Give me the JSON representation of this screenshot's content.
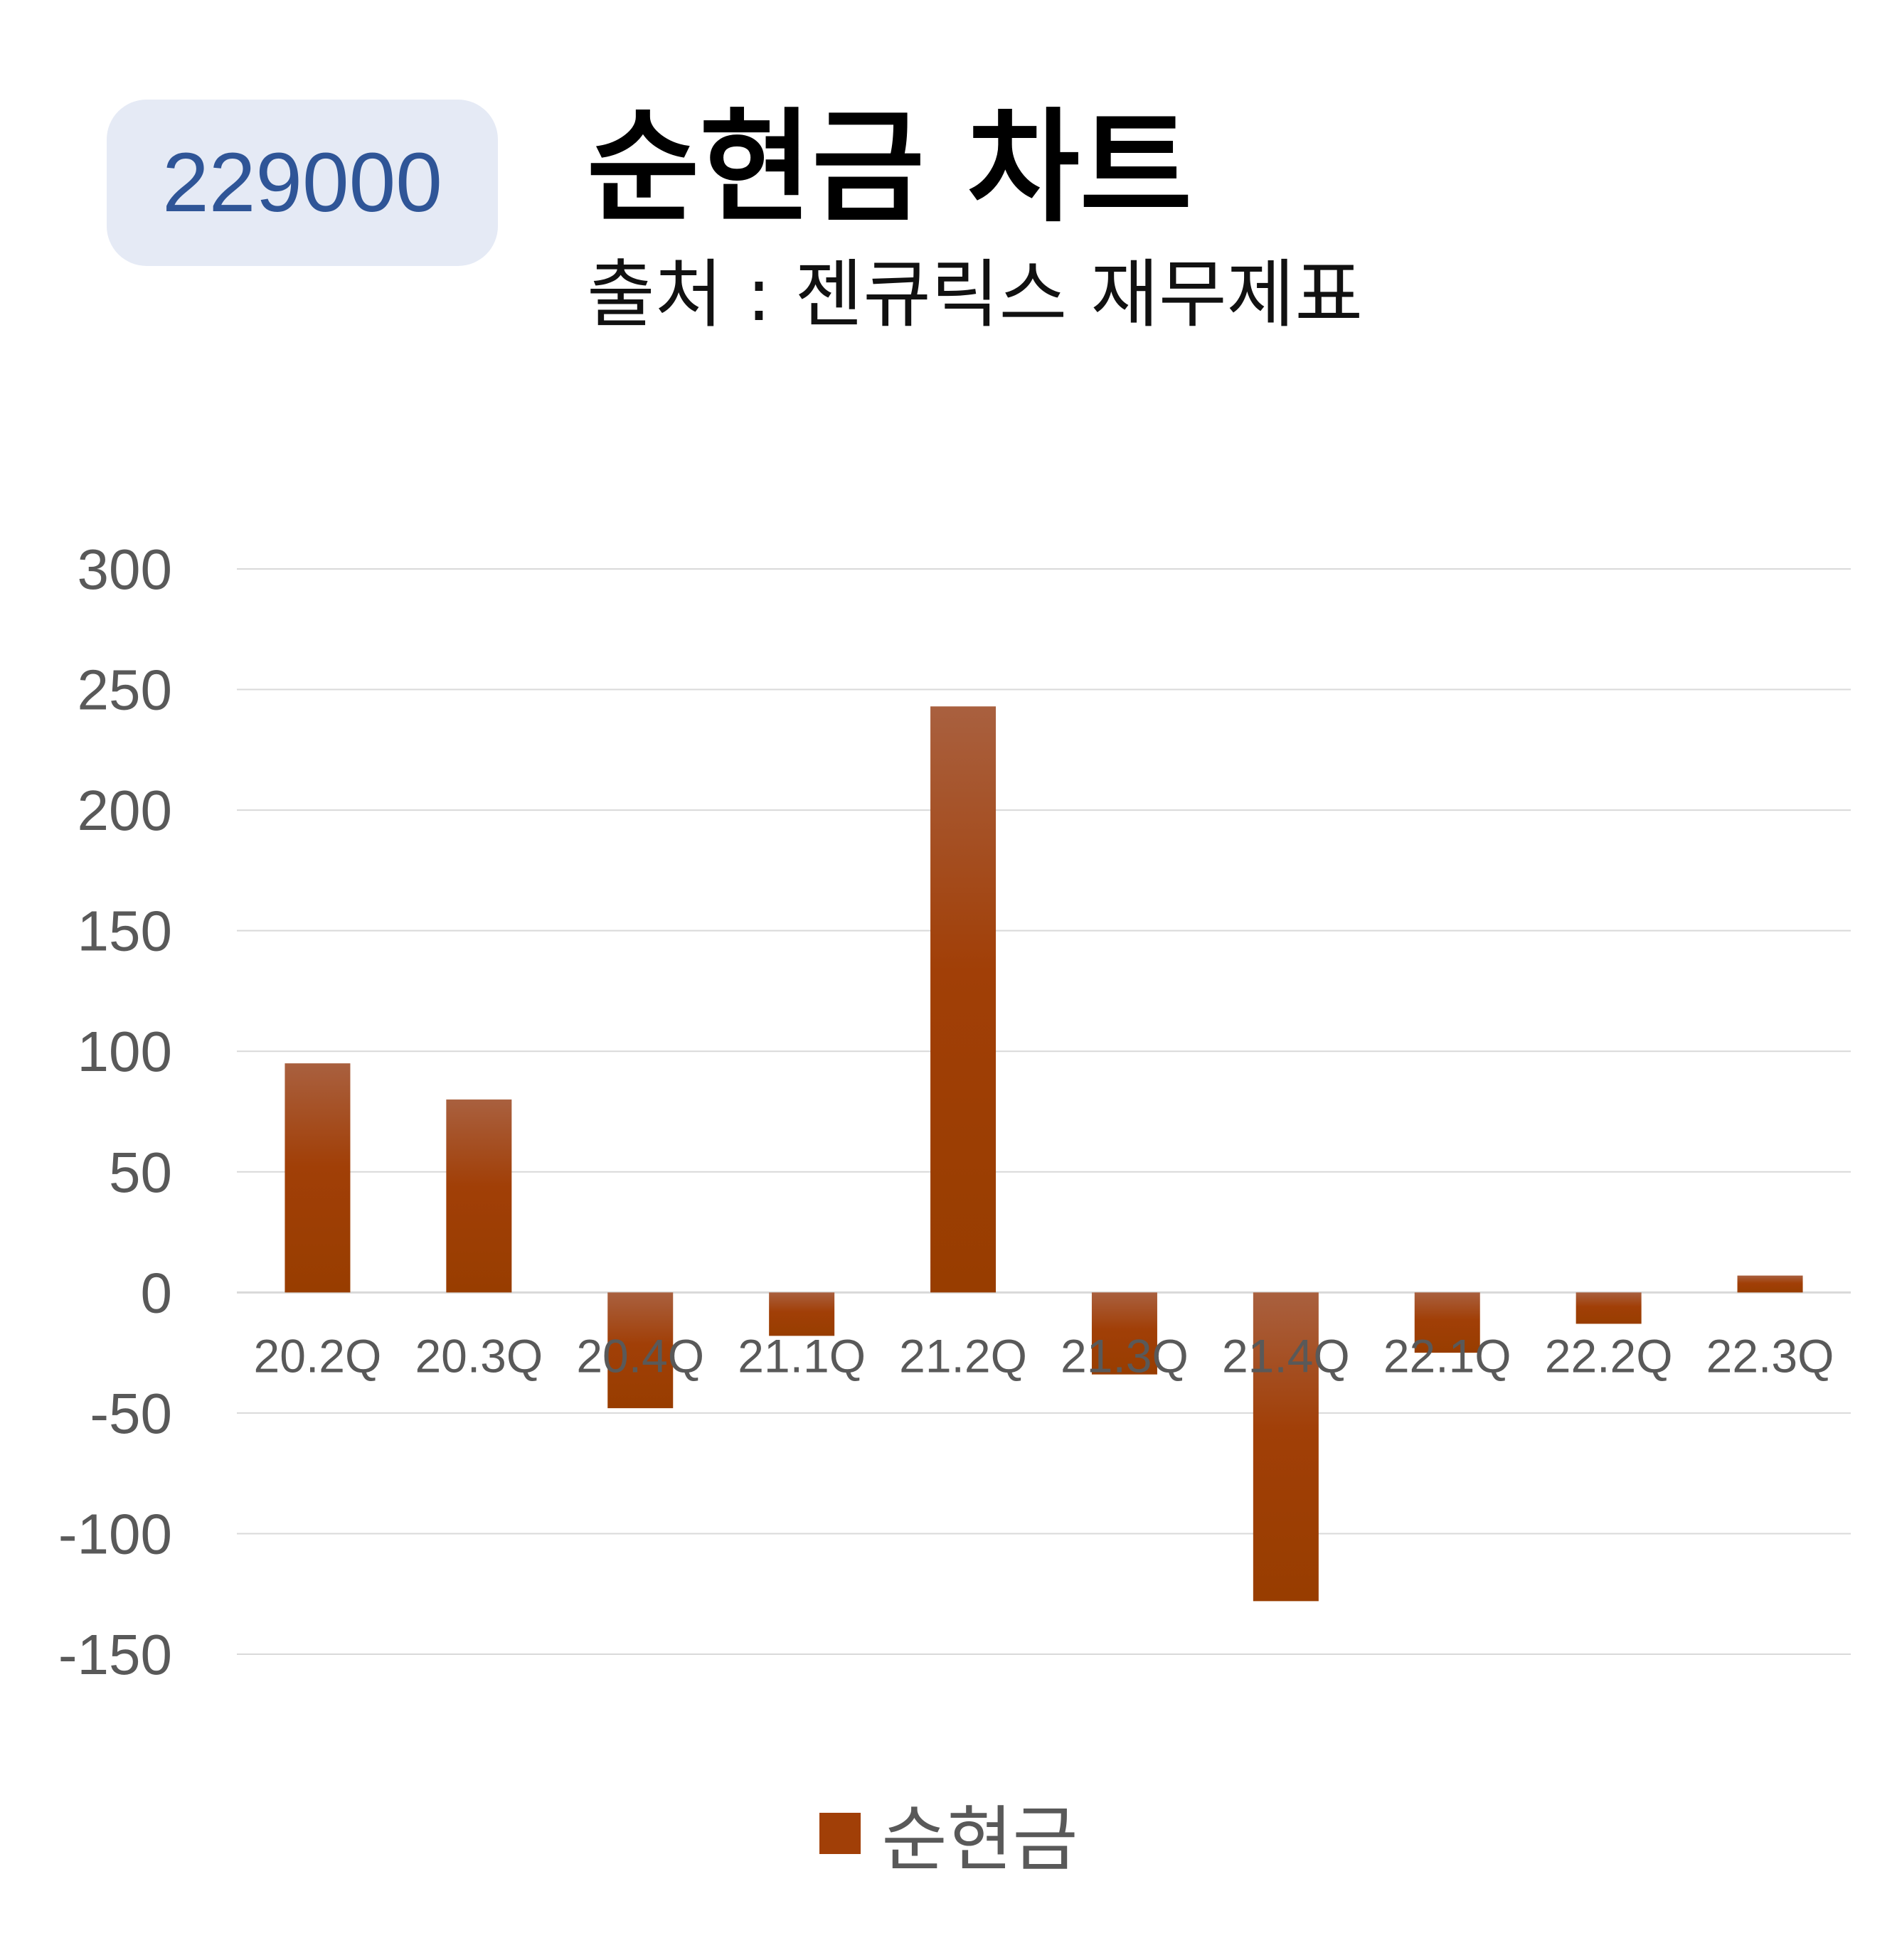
{
  "badge": {
    "code": "229000"
  },
  "header": {
    "title": "순현금 차트",
    "subtitle": "출처 : 젠큐릭스 재무제표"
  },
  "chart_data": {
    "type": "bar",
    "categories": [
      "20.2Q",
      "20.3Q",
      "20.4Q",
      "21.1Q",
      "21.2Q",
      "21.3Q",
      "21.4Q",
      "22.1Q",
      "22.2Q",
      "22.3Q"
    ],
    "series": [
      {
        "name": "순현금",
        "values": [
          95,
          80,
          -48,
          -18,
          243,
          -34,
          -128,
          -25,
          -13,
          7
        ]
      }
    ],
    "ylim": [
      -150,
      300
    ],
    "yticks": [
      300,
      250,
      200,
      150,
      100,
      50,
      0,
      -50,
      -100,
      -150
    ],
    "grid": true,
    "legend_position": "bottom",
    "bar_color": "#a13f07",
    "grid_color": "#d9d9d9",
    "label_color": "#595959"
  },
  "legend": {
    "label": "순현금"
  }
}
